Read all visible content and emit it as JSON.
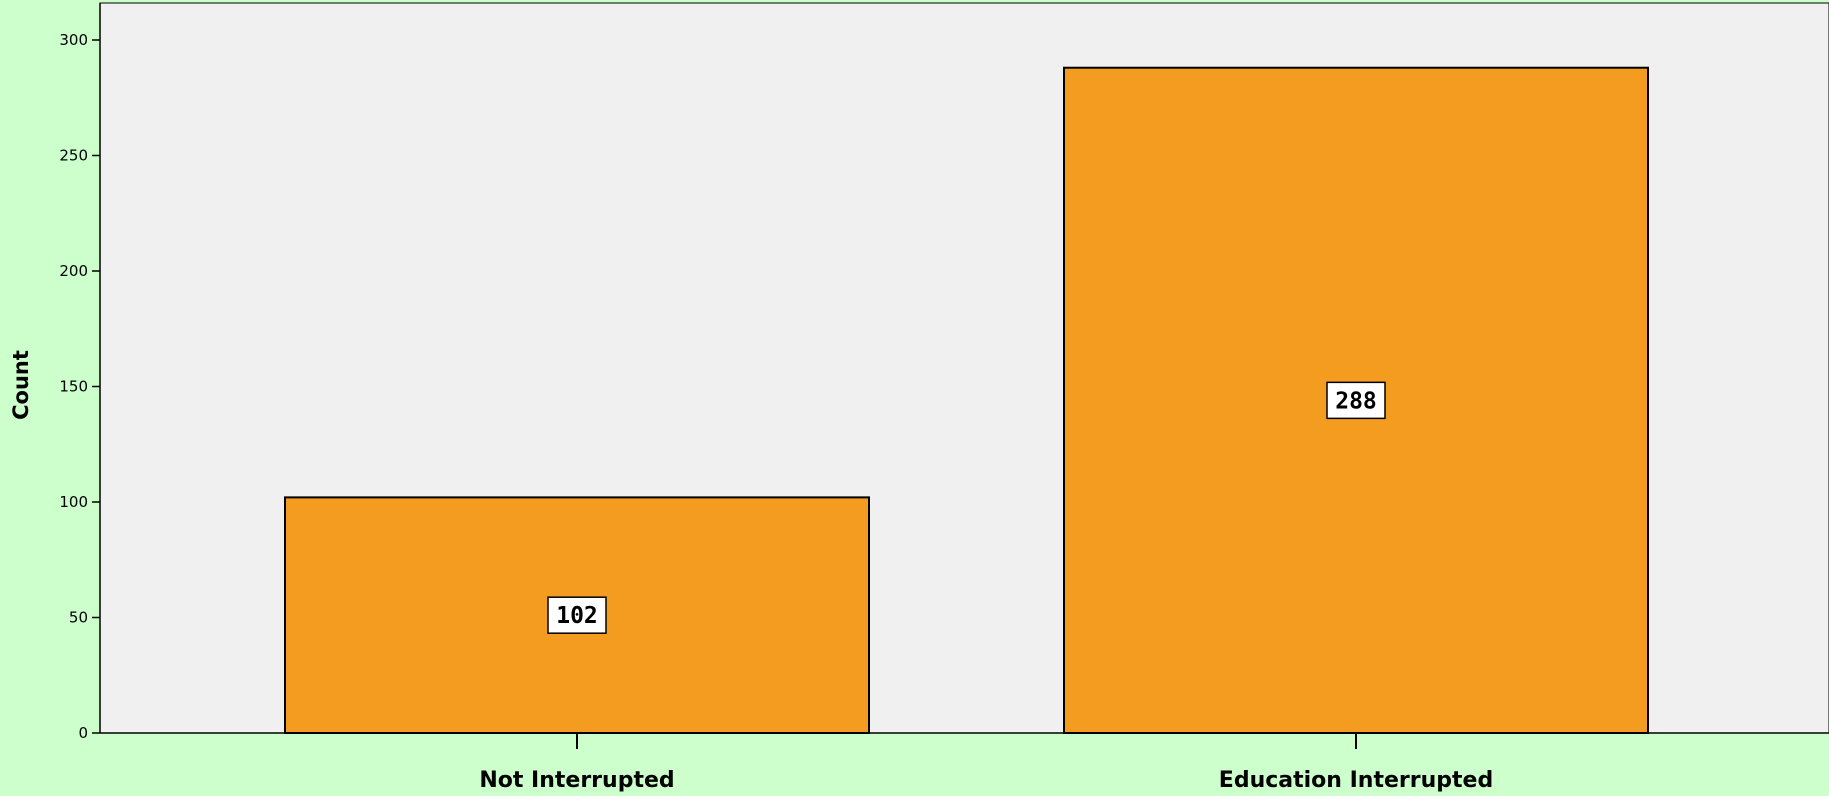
{
  "colors": {
    "page_background": "#ccffcc",
    "plot_background": "#f0f0f0",
    "bar_fill": "#f39c1f",
    "bar_stroke": "#000000",
    "label_box": "#ffffff"
  },
  "chart_data": {
    "type": "bar",
    "title": "",
    "xlabel": "",
    "ylabel": "Count",
    "categories": [
      "Not Interrupted",
      "Education Interrupted"
    ],
    "values": [
      102,
      288
    ],
    "data_labels": [
      "102",
      "288"
    ],
    "ylim": [
      0,
      315
    ],
    "yticks": [
      0,
      50,
      100,
      150,
      200,
      250,
      300
    ],
    "grid": false,
    "legend": "none"
  }
}
